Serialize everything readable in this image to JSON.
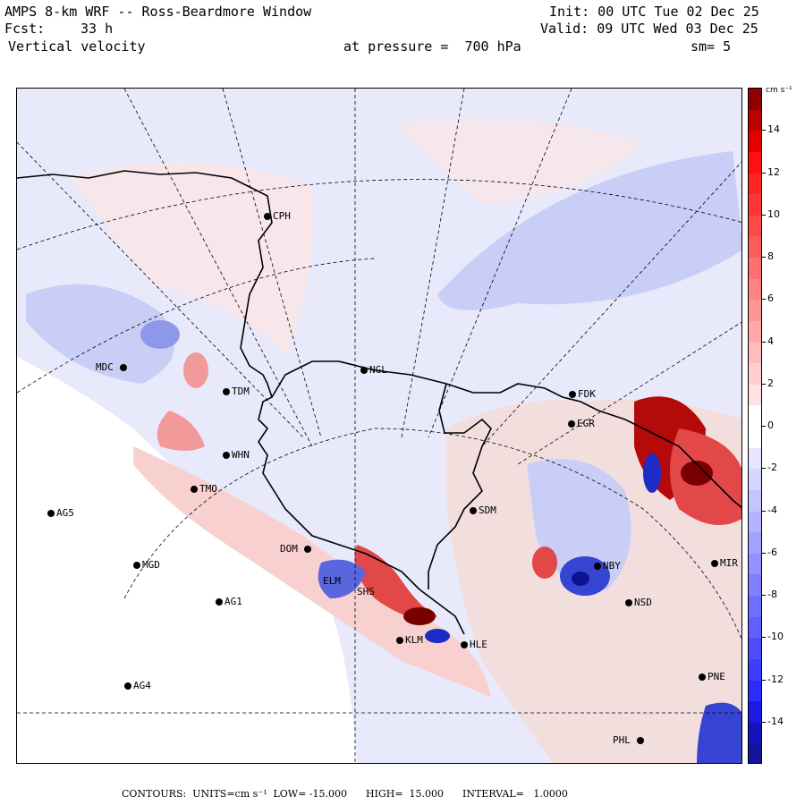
{
  "header": {
    "title": "AMPS 8-km WRF -- Ross-Beardmore Window",
    "init": "Init: 00 UTC Tue 02 Dec 25",
    "fcst_label": "Fcst:",
    "fcst_value": "33 h",
    "valid": "Valid: 09 UTC Wed 03 Dec 25",
    "variable": "Vertical velocity",
    "pressure": "at pressure =  700 hPa",
    "smoothing": "sm= 5"
  },
  "stations": [
    {
      "code": "CPH"
    },
    {
      "code": "NGL"
    },
    {
      "code": "FDK"
    },
    {
      "code": "EGR"
    },
    {
      "code": "MDC"
    },
    {
      "code": "TDM"
    },
    {
      "code": "WHN"
    },
    {
      "code": "TMO"
    },
    {
      "code": "AG5"
    },
    {
      "code": "SDM"
    },
    {
      "code": "DOM"
    },
    {
      "code": "MGD"
    },
    {
      "code": "AG1"
    },
    {
      "code": "ELM"
    },
    {
      "code": "SHS"
    },
    {
      "code": "NBY"
    },
    {
      "code": "NSD"
    },
    {
      "code": "MIR"
    },
    {
      "code": "HLE"
    },
    {
      "code": "KLM"
    },
    {
      "code": "AG4"
    },
    {
      "code": "PNE"
    },
    {
      "code": "PHL"
    }
  ],
  "colorbar": {
    "unit": "cm s⁻¹",
    "range": [
      -16,
      16
    ],
    "ticks": [
      "14",
      "12",
      "10",
      "8",
      "6",
      "4",
      "2",
      "0",
      "-2",
      "-4",
      "-6",
      "-8",
      "-10",
      "-12",
      "-14"
    ],
    "colors": {
      "strong_positive": "#7a0000",
      "positive": "#e23030",
      "weak_positive": "#f5c8c8",
      "neutral": "#ffffff",
      "weak_negative": "#c8cef5",
      "negative": "#2c3cd0",
      "strong_negative": "#000a80"
    }
  },
  "footer": {
    "text": "CONTOURS:  UNITS=cm s⁻¹  LOW= -15.000      HIGH=  15.000      INTERVAL=   1.0000"
  }
}
